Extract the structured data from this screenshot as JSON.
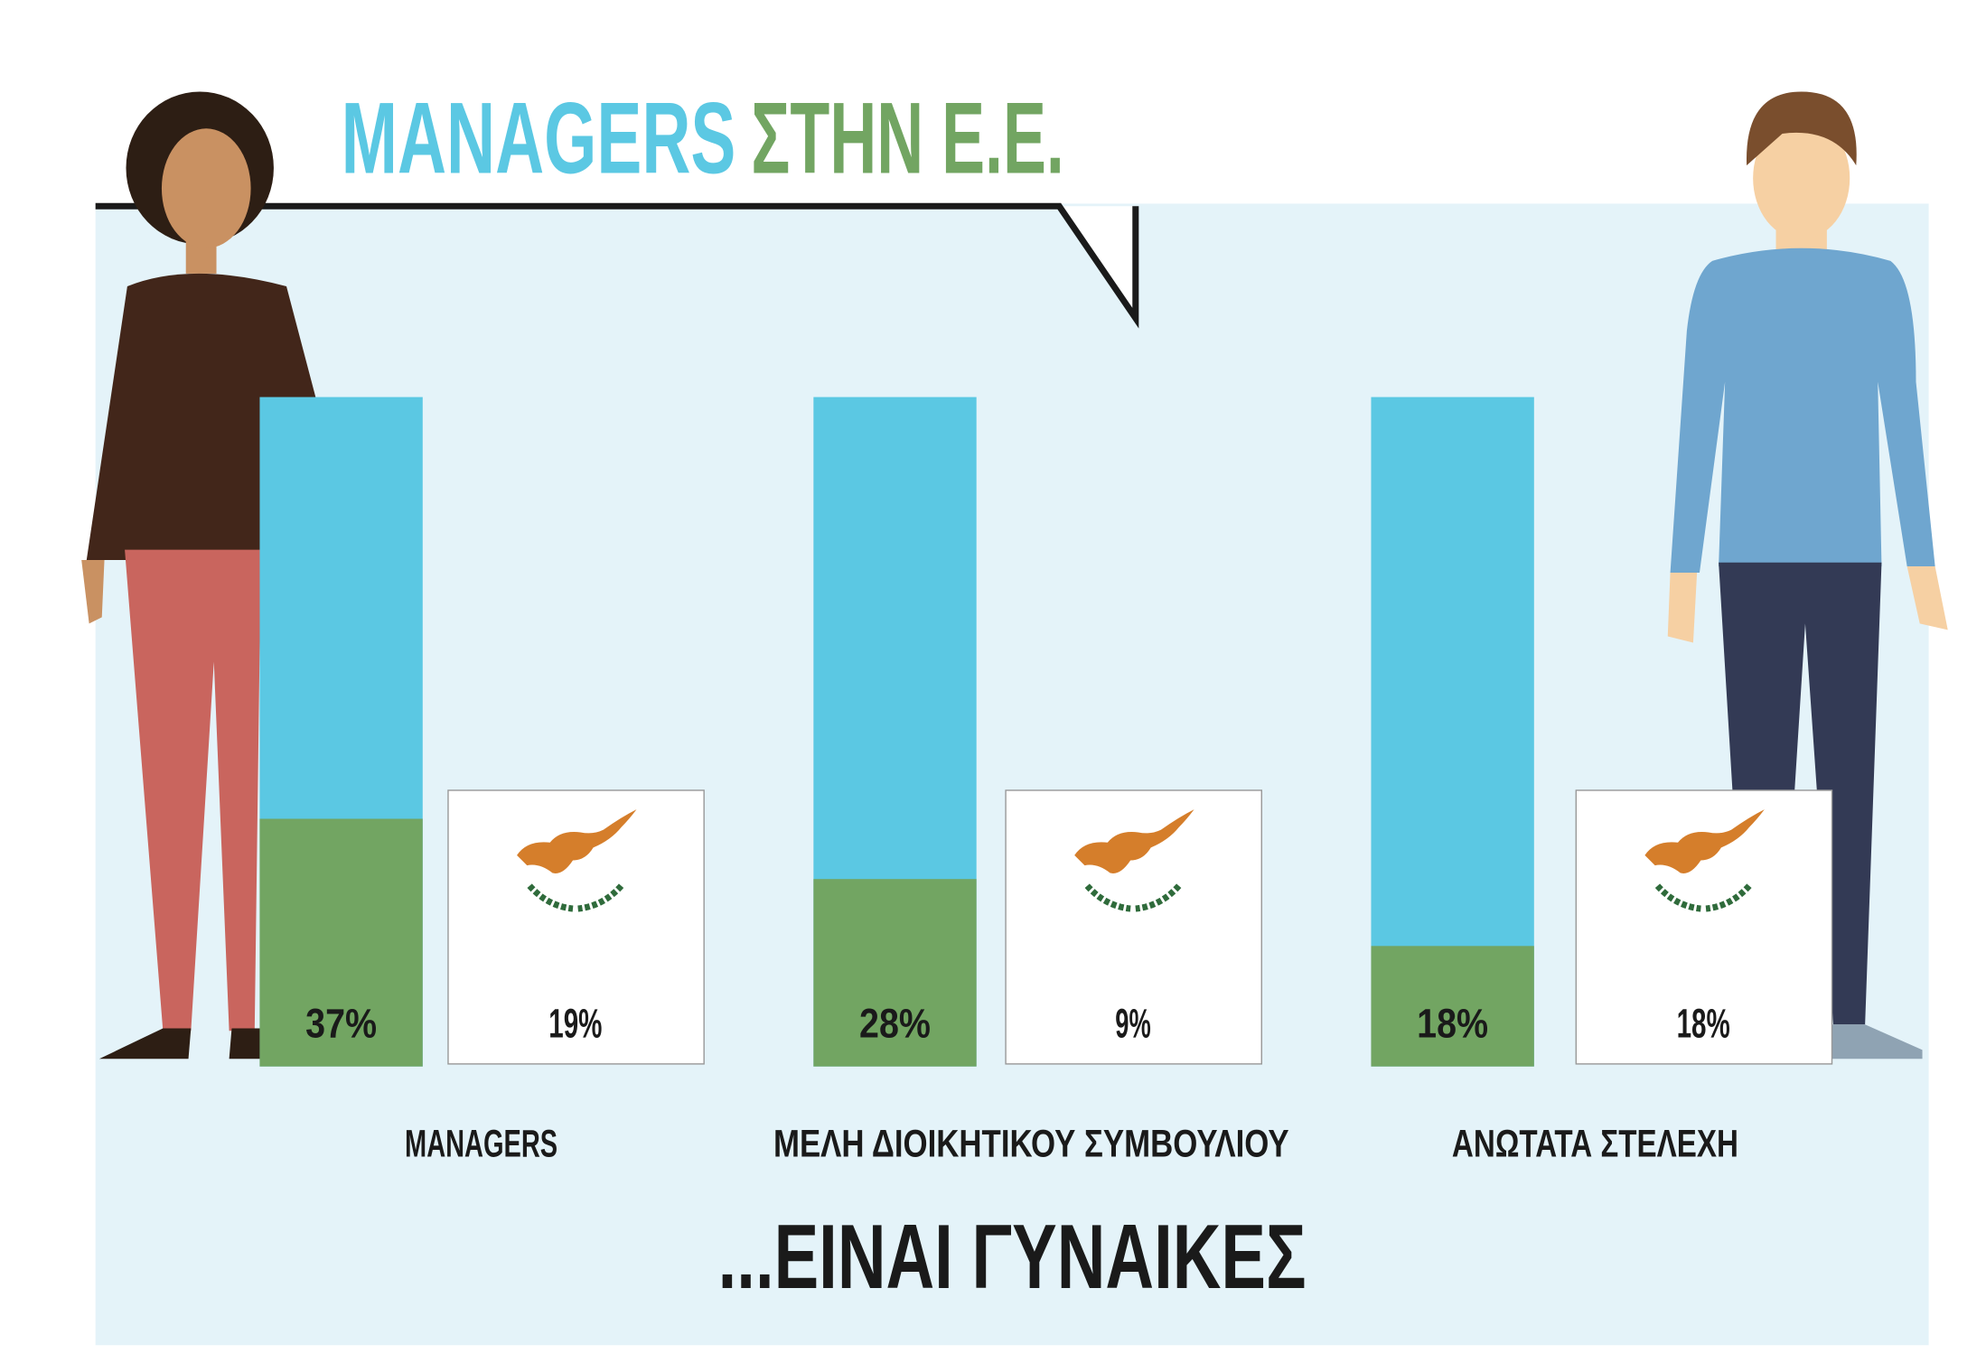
{
  "chart_data": {
    "type": "bar",
    "title": [
      "MANAGERS",
      "ΣΤΗΝ Ε.Ε."
    ],
    "title_colors": [
      "#5bc8e3",
      "#72a562"
    ],
    "categories": [
      "MANAGERS",
      "ΜΕΛΗ ΔΙΟΙΚΗΤΙΚΟΥ ΣΥΜΒΟΥΛΙΟΥ",
      "ΑΝΩΤΑΤΑ ΣΤΕΛΕΧΗ"
    ],
    "series": [
      {
        "color": "#72a562",
        "background": "#5bc8e3",
        "values": [
          37,
          28,
          18
        ],
        "value_labels": [
          "37%",
          "28%",
          "18%"
        ]
      },
      {
        "values": [
          19,
          9,
          18
        ],
        "value_labels": [
          "19%",
          "9%",
          "18%"
        ]
      }
    ],
    "ylim": [
      0,
      100
    ],
    "annotation": "...ΕΙΝΑΙ ΓΥΝΑΙΚΕΣ"
  }
}
